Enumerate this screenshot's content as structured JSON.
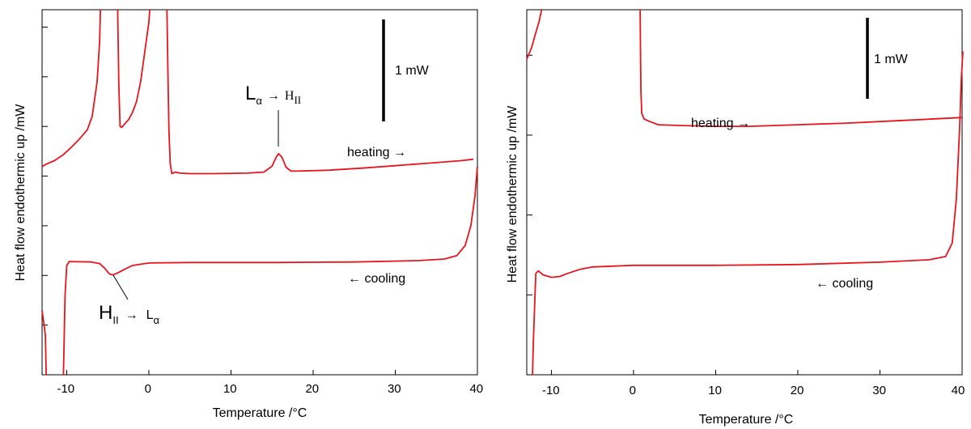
{
  "chart_data": [
    {
      "type": "line",
      "xlabel": "Temperature /°C",
      "ylabel": "Heat flow endothermic up /mW",
      "xlim": [
        -13,
        40
      ],
      "ylim": [
        0,
        7.35
      ],
      "x_ticks": [
        "-10",
        "0",
        "10",
        "20",
        "30",
        "40"
      ],
      "y_tick_values": [
        1,
        2,
        3,
        4,
        5,
        6,
        7
      ],
      "show_y_tick_labels": false,
      "grid": false,
      "scale_bar": {
        "label": "1 mW",
        "x": 28.8,
        "y_from": 5.1,
        "y_to": 7.1
      },
      "series": [
        {
          "color": "#e8141e",
          "points": [
            [
              -13,
              4.19
            ],
            [
              -12.5,
              4.24
            ],
            [
              -11.5,
              4.31
            ],
            [
              -10.5,
              4.42
            ],
            [
              -9.5,
              4.57
            ],
            [
              -8.5,
              4.74
            ],
            [
              -7.5,
              4.93
            ],
            [
              -6.9,
              5.2
            ],
            [
              -6.3,
              5.9
            ],
            [
              -6.0,
              6.7
            ],
            [
              -5.9,
              7.35
            ],
            null,
            [
              -3.8,
              7.35
            ],
            [
              -3.65,
              5.8
            ],
            [
              -3.5,
              5.0
            ],
            [
              -3.3,
              4.98
            ],
            [
              -3.0,
              5.04
            ],
            [
              -2.5,
              5.13
            ],
            [
              -2.0,
              5.28
            ],
            [
              -1.5,
              5.5
            ],
            [
              -1.0,
              5.9
            ],
            [
              -0.5,
              6.5
            ],
            [
              0.0,
              7.1
            ],
            [
              0.1,
              7.35
            ],
            null,
            [
              2.2,
              7.35
            ],
            [
              2.3,
              6.3
            ],
            [
              2.45,
              4.9
            ],
            [
              2.6,
              4.25
            ],
            [
              2.8,
              4.05
            ],
            [
              3.2,
              4.08
            ],
            [
              3.8,
              4.06
            ],
            [
              5,
              4.05
            ],
            [
              8,
              4.05
            ],
            [
              12,
              4.06
            ],
            [
              14,
              4.08
            ],
            [
              15,
              4.2
            ],
            [
              15.5,
              4.38
            ],
            [
              15.8,
              4.45
            ],
            [
              16.2,
              4.38
            ],
            [
              16.7,
              4.18
            ],
            [
              17.3,
              4.1
            ],
            [
              18,
              4.1
            ],
            [
              22,
              4.12
            ],
            [
              26,
              4.16
            ],
            [
              30,
              4.21
            ],
            [
              34,
              4.26
            ],
            [
              38,
              4.31
            ],
            [
              39.5,
              4.34
            ]
          ]
        },
        {
          "color": "#e8141e",
          "points": [
            [
              -10.4,
              0
            ],
            [
              -10.2,
              1.6
            ],
            [
              -10.0,
              2.2
            ],
            [
              -9.7,
              2.28
            ],
            [
              -7,
              2.27
            ],
            [
              -6,
              2.24
            ],
            [
              -5.4,
              2.15
            ],
            [
              -4.8,
              2.03
            ],
            [
              -4.4,
              2.01
            ],
            [
              -3.8,
              2.05
            ],
            [
              -3,
              2.12
            ],
            [
              -2,
              2.2
            ],
            [
              0,
              2.25
            ],
            [
              5,
              2.26
            ],
            [
              15,
              2.26
            ],
            [
              25,
              2.27
            ],
            [
              33,
              2.3
            ],
            [
              36,
              2.33
            ],
            [
              37.5,
              2.4
            ],
            [
              38.5,
              2.6
            ],
            [
              39.2,
              3.0
            ],
            [
              39.7,
              3.6
            ],
            [
              40,
              4.2
            ]
          ]
        },
        {
          "color": "#e8141e",
          "points": [
            [
              -13,
              1.3
            ],
            [
              -12.6,
              0.8
            ],
            [
              -12.5,
              0
            ]
          ]
        }
      ]
    },
    {
      "type": "line",
      "xlabel": "Temperature /°C",
      "ylabel": "Heat flow endothermic up /mW",
      "xlim": [
        -13,
        40
      ],
      "ylim": [
        0,
        4.57
      ],
      "x_ticks": [
        "-10",
        "0",
        "10",
        "20",
        "30",
        "40"
      ],
      "y_tick_values": [
        1,
        2,
        3,
        4
      ],
      "show_y_tick_labels": false,
      "grid": false,
      "scale_bar": {
        "label": "1 mW",
        "x": 28.6,
        "y_from": 3.55,
        "y_to": 4.55
      },
      "series": [
        {
          "color": "#e8141e",
          "points": [
            [
              -13,
              3.95
            ],
            [
              -12.4,
              4.1
            ],
            [
              -12,
              4.25
            ],
            [
              -11.5,
              4.42
            ],
            [
              -11.2,
              4.57
            ],
            null,
            [
              0.8,
              4.57
            ],
            [
              0.85,
              4.0
            ],
            [
              0.9,
              3.55
            ],
            [
              1.0,
              3.27
            ],
            [
              1.3,
              3.2
            ],
            [
              2,
              3.17
            ],
            [
              3,
              3.13
            ],
            [
              6,
              3.12
            ],
            [
              10,
              3.11
            ],
            [
              14,
              3.11
            ],
            [
              20,
              3.13
            ],
            [
              26,
              3.15
            ],
            [
              32,
              3.18
            ],
            [
              36,
              3.2
            ],
            [
              40,
              3.22
            ]
          ]
        },
        {
          "color": "#e8141e",
          "points": [
            [
              -12.3,
              0
            ],
            [
              -12.2,
              0.4
            ],
            [
              -12.0,
              1.0
            ],
            [
              -11.9,
              1.27
            ],
            [
              -11.6,
              1.3
            ],
            [
              -11,
              1.25
            ],
            [
              -10,
              1.22
            ],
            [
              -9,
              1.23
            ],
            [
              -8,
              1.27
            ],
            [
              -6.5,
              1.32
            ],
            [
              -5,
              1.35
            ],
            [
              0,
              1.37
            ],
            [
              10,
              1.37
            ],
            [
              20,
              1.38
            ],
            [
              30,
              1.41
            ],
            [
              36,
              1.44
            ],
            [
              38,
              1.48
            ],
            [
              38.8,
              1.65
            ],
            [
              39.3,
              2.2
            ],
            [
              39.7,
              3.1
            ],
            [
              39.9,
              3.7
            ],
            [
              40.1,
              4.05
            ]
          ]
        }
      ]
    }
  ],
  "annotations": {
    "left_heating": "heating →",
    "left_cooling": "← cooling",
    "left_scale": "1 mW",
    "trans1_main": "L",
    "trans1_sub1": "α",
    "trans1_arrow": "→",
    "trans1_main2": "H",
    "trans1_sub2": "II",
    "trans2_main": "H",
    "trans2_sub1": "II",
    "trans2_arrow": "→",
    "trans2_main2": "L",
    "trans2_sub2": "α",
    "right_heating": "heating →",
    "right_cooling": "← cooling",
    "right_scale": "1 mW"
  }
}
